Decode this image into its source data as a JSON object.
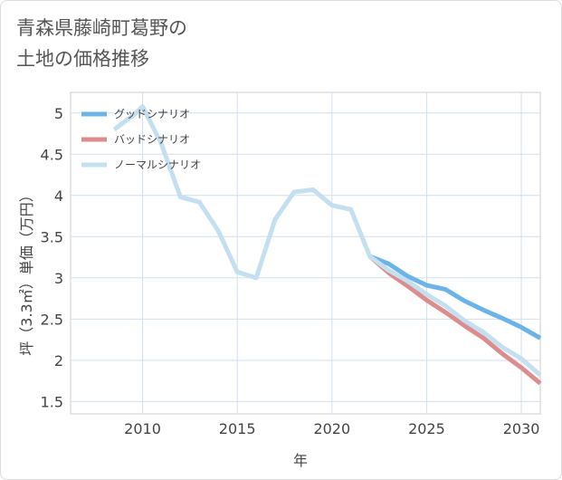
{
  "title": {
    "line1": "青森県藤崎町葛野の",
    "line2": "土地の価格推移"
  },
  "chart_data": {
    "type": "line",
    "title": "青森県藤崎町葛野の土地の価格推移",
    "xlabel": "年",
    "ylabel": "坪（3.3㎡）単価（万円）",
    "xlim": [
      2006.2,
      2031
    ],
    "ylim": [
      1.35,
      5.25
    ],
    "xticks": [
      2010,
      2015,
      2020,
      2025,
      2030
    ],
    "yticks": [
      1.5,
      2,
      2.5,
      3,
      3.5,
      4,
      4.5,
      5
    ],
    "grid": true,
    "legend_position": "top-left",
    "series": [
      {
        "name": "グッドシナリオ",
        "color": "#6cb4e8",
        "x": [
          2022,
          2023,
          2024,
          2025,
          2026,
          2027,
          2028,
          2029,
          2030,
          2031
        ],
        "y": [
          3.26,
          3.17,
          3.02,
          2.91,
          2.86,
          2.72,
          2.61,
          2.51,
          2.4,
          2.27
        ]
      },
      {
        "name": "バッドシナリオ",
        "color": "#dd8c8e",
        "x": [
          2022,
          2023,
          2024,
          2025,
          2026,
          2027,
          2028,
          2029,
          2030,
          2031
        ],
        "y": [
          3.26,
          3.06,
          2.9,
          2.73,
          2.58,
          2.42,
          2.27,
          2.08,
          1.91,
          1.72
        ]
      },
      {
        "name": "ノーマルシナリオ",
        "color": "#c3dff0",
        "x": [
          2008.5,
          2009.5,
          2010,
          2011,
          2012,
          2013,
          2014,
          2015,
          2016,
          2017,
          2018,
          2019,
          2020,
          2021,
          2022,
          2023,
          2024,
          2025,
          2026,
          2027,
          2028,
          2029,
          2030,
          2031
        ],
        "y": [
          4.8,
          4.97,
          5.08,
          4.62,
          3.98,
          3.92,
          3.57,
          3.07,
          3.0,
          3.71,
          4.04,
          4.07,
          3.88,
          3.83,
          3.26,
          3.09,
          2.96,
          2.8,
          2.66,
          2.48,
          2.34,
          2.16,
          2.02,
          1.82
        ]
      }
    ]
  }
}
